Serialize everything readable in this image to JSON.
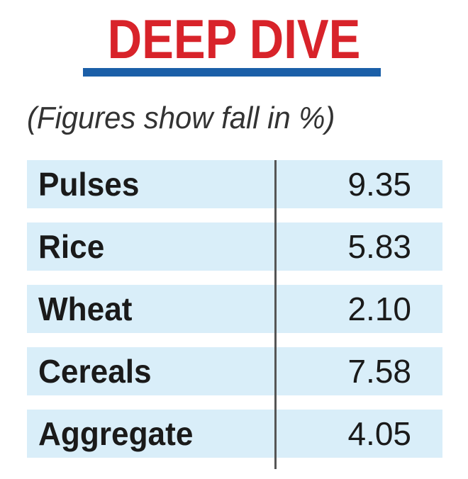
{
  "header": {
    "title": "DEEP DIVE",
    "subtitle": "(Figures show fall in %)"
  },
  "colors": {
    "title": "#d8232a",
    "rule": "#1b5fa8",
    "row_background": "#d9eef9",
    "divider": "#555555"
  },
  "chart_data": {
    "type": "table",
    "title": "DEEP DIVE",
    "subtitle": "(Figures show fall in %)",
    "columns": [
      "",
      ""
    ],
    "rows": [
      {
        "label": "Pulses",
        "value": "9.35"
      },
      {
        "label": "Rice",
        "value": "5.83"
      },
      {
        "label": "Wheat",
        "value": "2.10"
      },
      {
        "label": "Cereals",
        "value": "7.58"
      },
      {
        "label": "Aggregate",
        "value": "4.05"
      }
    ]
  }
}
